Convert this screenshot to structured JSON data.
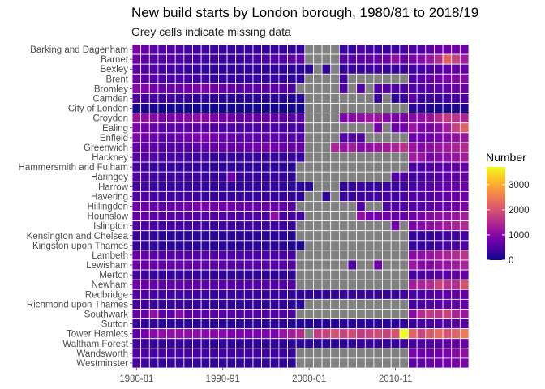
{
  "chart_data": {
    "type": "heatmap",
    "title": "New build starts by London borough, 1980/81 to 2018/19",
    "subtitle": "Grey cells indicate missing data",
    "legend_title": "Number",
    "color_scale": "plasma",
    "missing_color": "#808080",
    "value_range": [
      0,
      3700
    ],
    "legend_ticks": [
      0,
      1000,
      2000,
      3000
    ],
    "x_tick_labels": [
      "1980-81",
      "1990-91",
      "2000-01",
      "2010-11"
    ],
    "x_tick_index": [
      0,
      10,
      20,
      30
    ],
    "years_count": 39,
    "boroughs": [
      "Barking and Dagenham",
      "Barnet",
      "Bexley",
      "Brent",
      "Bromley",
      "Camden",
      "City of London",
      "Croydon",
      "Ealing",
      "Enfield",
      "Greenwich",
      "Hackney",
      "Hammersmith and Fulham",
      "Haringey",
      "Harrow",
      "Havering",
      "Hillingdon",
      "Hounslow",
      "Islington",
      "Kensington and Chelsea",
      "Kingston upon Thames",
      "Lambeth",
      "Lewisham",
      "Merton",
      "Newham",
      "Redbridge",
      "Richmond upon Thames",
      "Southwark",
      "Sutton",
      "Tower Hamlets",
      "Waltham Forest",
      "Wandsworth",
      "Westminster"
    ],
    "values": [
      [
        900,
        700,
        600,
        500,
        500,
        450,
        400,
        400,
        350,
        350,
        300,
        300,
        300,
        300,
        300,
        300,
        300,
        300,
        250,
        300,
        null,
        null,
        null,
        null,
        300,
        300,
        500,
        400,
        350,
        300,
        350,
        400,
        450,
        500,
        600,
        700,
        750,
        800,
        800
      ],
      [
        800,
        600,
        500,
        500,
        500,
        450,
        400,
        400,
        350,
        350,
        300,
        300,
        300,
        350,
        400,
        450,
        500,
        550,
        600,
        600,
        null,
        null,
        null,
        null,
        500,
        550,
        600,
        650,
        700,
        750,
        1100,
        700,
        900,
        1000,
        1200,
        1500,
        2200,
        1800,
        1300
      ],
      [
        600,
        500,
        500,
        400,
        400,
        350,
        300,
        300,
        250,
        250,
        250,
        250,
        250,
        250,
        250,
        250,
        250,
        250,
        200,
        200,
        200,
        null,
        250,
        null,
        250,
        300,
        300,
        350,
        350,
        300,
        300,
        300,
        350,
        400,
        450,
        500,
        600,
        650,
        700
      ],
      [
        700,
        600,
        500,
        500,
        450,
        450,
        400,
        350,
        350,
        300,
        300,
        300,
        300,
        300,
        300,
        300,
        300,
        300,
        250,
        250,
        null,
        null,
        null,
        null,
        400,
        null,
        null,
        null,
        null,
        null,
        null,
        null,
        500,
        600,
        700,
        800,
        900,
        950,
        1000
      ],
      [
        1000,
        900,
        800,
        700,
        700,
        700,
        800,
        900,
        900,
        800,
        700,
        700,
        600,
        600,
        600,
        600,
        600,
        600,
        450,
        null,
        null,
        null,
        null,
        null,
        500,
        null,
        500,
        null,
        500,
        500,
        500,
        450,
        500,
        500,
        550,
        600,
        650,
        700,
        750
      ],
      [
        500,
        400,
        400,
        350,
        350,
        300,
        300,
        250,
        250,
        250,
        200,
        200,
        200,
        200,
        200,
        200,
        200,
        200,
        150,
        200,
        null,
        null,
        null,
        null,
        null,
        null,
        null,
        null,
        300,
        null,
        200,
        300,
        600,
        300,
        350,
        300,
        350,
        400,
        450
      ],
      [
        100,
        100,
        100,
        50,
        50,
        50,
        50,
        50,
        50,
        50,
        50,
        50,
        50,
        50,
        50,
        50,
        50,
        50,
        50,
        50,
        null,
        null,
        null,
        null,
        null,
        null,
        null,
        null,
        null,
        null,
        null,
        null,
        200,
        200,
        150,
        100,
        100,
        150,
        150
      ],
      [
        1200,
        1100,
        1000,
        900,
        900,
        900,
        1000,
        1100,
        1000,
        900,
        800,
        800,
        700,
        700,
        700,
        700,
        700,
        600,
        600,
        600,
        null,
        null,
        null,
        null,
        900,
        1000,
        1100,
        1200,
        1200,
        1000,
        900,
        900,
        1000,
        1100,
        1200,
        1500,
        1700,
        1600,
        1400
      ],
      [
        900,
        800,
        700,
        600,
        600,
        600,
        600,
        600,
        550,
        500,
        500,
        450,
        450,
        450,
        450,
        450,
        450,
        450,
        400,
        400,
        null,
        null,
        null,
        null,
        null,
        null,
        null,
        null,
        800,
        null,
        700,
        800,
        1200,
        900,
        900,
        1000,
        1300,
        1800,
        2200
      ],
      [
        900,
        800,
        700,
        600,
        600,
        700,
        800,
        900,
        900,
        800,
        700,
        700,
        600,
        600,
        600,
        600,
        600,
        600,
        500,
        500,
        null,
        null,
        null,
        null,
        500,
        500,
        500,
        null,
        null,
        null,
        null,
        null,
        700,
        800,
        800,
        900,
        1000,
        1100,
        1200
      ],
      [
        700,
        650,
        600,
        550,
        500,
        500,
        550,
        600,
        650,
        700,
        750,
        700,
        700,
        750,
        800,
        850,
        800,
        750,
        700,
        700,
        null,
        null,
        null,
        1400,
        1200,
        1300,
        1000,
        1100,
        1200,
        1300,
        1400,
        1600,
        1200,
        1000,
        1100,
        1200,
        1300,
        1400,
        1500
      ],
      [
        600,
        550,
        500,
        450,
        450,
        400,
        400,
        350,
        350,
        300,
        300,
        300,
        300,
        300,
        300,
        300,
        300,
        300,
        300,
        300,
        null,
        null,
        null,
        null,
        null,
        null,
        null,
        null,
        null,
        null,
        null,
        null,
        1300,
        1200,
        900,
        1000,
        1100,
        1200,
        1300
      ],
      [
        400,
        350,
        300,
        300,
        300,
        300,
        300,
        300,
        250,
        250,
        250,
        250,
        250,
        250,
        250,
        250,
        250,
        250,
        200,
        null,
        null,
        null,
        null,
        null,
        null,
        null,
        null,
        null,
        null,
        null,
        null,
        null,
        400,
        450,
        500,
        550,
        600,
        650,
        700
      ],
      [
        500,
        450,
        400,
        350,
        350,
        350,
        350,
        350,
        300,
        300,
        300,
        800,
        300,
        300,
        300,
        300,
        300,
        300,
        250,
        null,
        null,
        null,
        null,
        null,
        null,
        null,
        null,
        null,
        null,
        null,
        500,
        500,
        400,
        450,
        500,
        550,
        600,
        650,
        700
      ],
      [
        400,
        350,
        300,
        300,
        300,
        300,
        300,
        300,
        250,
        250,
        250,
        250,
        250,
        250,
        250,
        250,
        250,
        250,
        200,
        200,
        200,
        null,
        null,
        null,
        250,
        250,
        300,
        300,
        300,
        350,
        300,
        350,
        400,
        500,
        550,
        600,
        650,
        700,
        750
      ],
      [
        500,
        450,
        400,
        350,
        350,
        350,
        350,
        350,
        300,
        300,
        300,
        300,
        300,
        300,
        300,
        300,
        300,
        300,
        250,
        250,
        null,
        null,
        250,
        null,
        300,
        300,
        350,
        350,
        400,
        400,
        400,
        450,
        500,
        500,
        550,
        600,
        650,
        700,
        800
      ],
      [
        800,
        750,
        700,
        650,
        650,
        700,
        800,
        900,
        900,
        850,
        800,
        800,
        700,
        700,
        700,
        700,
        700,
        700,
        550,
        null,
        null,
        null,
        null,
        null,
        null,
        null,
        500,
        null,
        null,
        500,
        500,
        500,
        500,
        550,
        600,
        700,
        700,
        800,
        900
      ],
      [
        700,
        650,
        600,
        550,
        550,
        550,
        550,
        550,
        500,
        500,
        500,
        450,
        450,
        450,
        450,
        450,
        1100,
        450,
        400,
        400,
        null,
        null,
        null,
        null,
        null,
        null,
        1100,
        800,
        800,
        800,
        700,
        700,
        800,
        900,
        1000,
        1100,
        1100,
        1200,
        1300
      ],
      [
        500,
        450,
        400,
        400,
        400,
        400,
        400,
        400,
        350,
        350,
        350,
        350,
        350,
        350,
        350,
        350,
        350,
        350,
        300,
        null,
        null,
        null,
        null,
        null,
        null,
        null,
        null,
        null,
        null,
        null,
        800,
        null,
        900,
        1000,
        1100,
        1200,
        1300,
        1400,
        1500
      ],
      [
        300,
        250,
        250,
        200,
        200,
        200,
        200,
        200,
        200,
        200,
        200,
        200,
        200,
        200,
        200,
        200,
        200,
        200,
        150,
        null,
        null,
        null,
        null,
        null,
        null,
        null,
        null,
        null,
        null,
        null,
        null,
        null,
        300,
        300,
        300,
        300,
        350,
        350,
        400
      ],
      [
        300,
        250,
        250,
        200,
        200,
        200,
        200,
        200,
        200,
        200,
        200,
        200,
        200,
        200,
        200,
        200,
        200,
        200,
        150,
        150,
        null,
        null,
        null,
        null,
        null,
        null,
        null,
        null,
        null,
        null,
        null,
        null,
        300,
        300,
        300,
        350,
        400,
        450,
        500
      ],
      [
        700,
        650,
        600,
        550,
        550,
        550,
        550,
        550,
        500,
        500,
        500,
        450,
        450,
        450,
        450,
        450,
        450,
        450,
        400,
        null,
        null,
        null,
        null,
        null,
        null,
        null,
        null,
        null,
        null,
        null,
        null,
        null,
        1000,
        1100,
        1200,
        1300,
        1400,
        1500,
        1600
      ],
      [
        800,
        750,
        700,
        650,
        650,
        650,
        650,
        650,
        600,
        600,
        600,
        550,
        550,
        550,
        550,
        550,
        550,
        550,
        500,
        null,
        null,
        null,
        null,
        null,
        null,
        500,
        null,
        null,
        800,
        null,
        null,
        null,
        1200,
        1000,
        1000,
        1100,
        1200,
        1300,
        1400
      ],
      [
        400,
        350,
        300,
        300,
        300,
        300,
        300,
        300,
        250,
        250,
        250,
        250,
        250,
        250,
        250,
        250,
        250,
        250,
        200,
        null,
        null,
        null,
        null,
        null,
        null,
        null,
        null,
        null,
        null,
        null,
        null,
        null,
        400,
        450,
        500,
        550,
        600,
        650,
        700
      ],
      [
        800,
        750,
        700,
        650,
        650,
        650,
        650,
        650,
        600,
        600,
        600,
        550,
        550,
        550,
        550,
        550,
        550,
        550,
        500,
        null,
        null,
        null,
        null,
        null,
        null,
        null,
        null,
        null,
        null,
        null,
        null,
        null,
        1300,
        1400,
        1500,
        1800,
        1600,
        1500,
        2000
      ],
      [
        500,
        450,
        400,
        350,
        350,
        350,
        350,
        350,
        300,
        300,
        300,
        300,
        300,
        300,
        300,
        300,
        300,
        300,
        250,
        250,
        250,
        250,
        250,
        250,
        300,
        300,
        300,
        300,
        300,
        300,
        300,
        350,
        400,
        450,
        500,
        550,
        600,
        650,
        700
      ],
      [
        400,
        350,
        300,
        300,
        300,
        300,
        300,
        300,
        250,
        250,
        250,
        250,
        250,
        250,
        250,
        250,
        250,
        250,
        200,
        200,
        null,
        null,
        null,
        null,
        null,
        null,
        null,
        null,
        null,
        null,
        null,
        null,
        400,
        450,
        500,
        550,
        600,
        650,
        700
      ],
      [
        700,
        650,
        1100,
        600,
        600,
        1000,
        600,
        600,
        550,
        550,
        550,
        500,
        500,
        500,
        500,
        500,
        500,
        500,
        450,
        null,
        null,
        null,
        null,
        null,
        null,
        null,
        null,
        null,
        null,
        null,
        null,
        null,
        1000,
        1500,
        1700,
        1600,
        1800,
        1400,
        1200
      ],
      [
        300,
        250,
        250,
        200,
        200,
        200,
        200,
        200,
        200,
        200,
        200,
        200,
        200,
        200,
        200,
        200,
        200,
        200,
        150,
        150,
        150,
        150,
        150,
        150,
        200,
        200,
        200,
        200,
        200,
        200,
        200,
        250,
        300,
        350,
        400,
        450,
        500,
        550,
        600
      ],
      [
        600,
        800,
        1000,
        1100,
        1100,
        1100,
        1100,
        1100,
        1000,
        1000,
        1000,
        900,
        900,
        900,
        900,
        900,
        900,
        1200,
        1300,
        1500,
        null,
        1700,
        1800,
        2000,
        1800,
        1900,
        1700,
        1800,
        1900,
        1800,
        2000,
        3700,
        2200,
        1800,
        2100,
        2300,
        2000,
        2200,
        2500
      ],
      [
        400,
        350,
        300,
        300,
        300,
        300,
        300,
        300,
        250,
        250,
        250,
        250,
        250,
        250,
        250,
        250,
        250,
        250,
        200,
        200,
        200,
        200,
        200,
        200,
        250,
        250,
        300,
        300,
        300,
        300,
        300,
        350,
        400,
        450,
        500,
        550,
        600,
        650,
        700
      ],
      [
        500,
        450,
        400,
        400,
        400,
        400,
        400,
        400,
        350,
        350,
        350,
        350,
        350,
        350,
        350,
        350,
        350,
        350,
        300,
        null,
        null,
        null,
        null,
        null,
        null,
        null,
        null,
        null,
        null,
        null,
        null,
        null,
        900,
        800,
        700,
        800,
        900,
        1000,
        1100
      ],
      [
        400,
        350,
        300,
        300,
        300,
        300,
        300,
        300,
        250,
        250,
        250,
        250,
        250,
        250,
        250,
        250,
        250,
        250,
        200,
        null,
        null,
        null,
        null,
        null,
        null,
        null,
        null,
        null,
        null,
        null,
        null,
        null,
        600,
        650,
        700,
        750,
        800,
        850,
        900
      ]
    ]
  }
}
